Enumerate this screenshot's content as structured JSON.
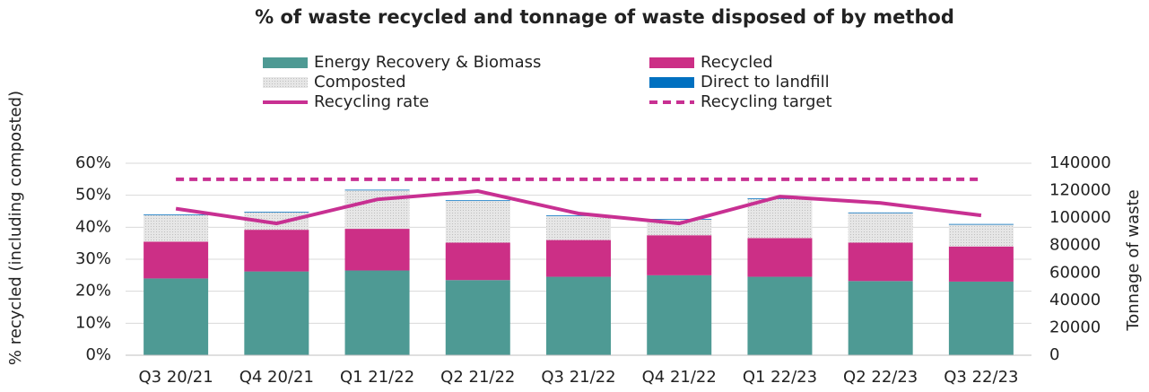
{
  "chart_data": {
    "type": "bar",
    "title": "% of waste recycled and tonnage of waste disposed of by method",
    "y_label": "% recycled (including composted)",
    "y2_label": "Tonnage of waste",
    "categories": [
      "Q3 20/21",
      "Q4 20/21",
      "Q1 21/22",
      "Q2 21/22",
      "Q3 21/22",
      "Q4 21/22",
      "Q1 22/23",
      "Q2 22/23",
      "Q3 22/23"
    ],
    "stacked": true,
    "series": [
      {
        "name": "Energy Recovery & Biomass",
        "color": "#4e9a94",
        "axis": "y2",
        "kind": "bar",
        "values": [
          56000,
          61100,
          61800,
          54800,
          57200,
          58300,
          57200,
          54100,
          53700
        ]
      },
      {
        "name": "Recycled",
        "color": "#cc2f86",
        "axis": "y2",
        "kind": "bar",
        "values": [
          26800,
          30400,
          30400,
          27300,
          26800,
          29200,
          28200,
          28000,
          25600
        ]
      },
      {
        "name": "Composted",
        "color": "#d9d9d9",
        "axis": "y2",
        "kind": "bar",
        "values": [
          19400,
          12600,
          28000,
          30400,
          17500,
          11400,
          28500,
          21500,
          15900
        ]
      },
      {
        "name": "Direct to landfill",
        "color": "#0070c0",
        "axis": "y2",
        "kind": "bar",
        "values": [
          500,
          500,
          500,
          500,
          500,
          500,
          500,
          500,
          500
        ]
      },
      {
        "name": "Recycling rate",
        "color": "#c83092",
        "axis": "y",
        "kind": "line",
        "values": [
          45.8,
          41.2,
          48.7,
          51.3,
          44.3,
          41.2,
          49.6,
          47.6,
          43.7
        ]
      },
      {
        "name": "Recycling target",
        "color": "#c83092",
        "axis": "y",
        "kind": "line",
        "dashed": true,
        "values": [
          55,
          55,
          55,
          55,
          55,
          55,
          55,
          55,
          55
        ]
      }
    ],
    "ylim": [
      0,
      60
    ],
    "yticks": [
      {
        "value": 0,
        "label": "0%"
      },
      {
        "value": 10,
        "label": "10%"
      },
      {
        "value": 20,
        "label": "20%"
      },
      {
        "value": 30,
        "label": "30%"
      },
      {
        "value": 40,
        "label": "40%"
      },
      {
        "value": 50,
        "label": "50%"
      },
      {
        "value": 60,
        "label": "60%"
      }
    ],
    "y2lim": [
      0,
      140000
    ],
    "y2ticks": [
      0,
      20000,
      40000,
      60000,
      80000,
      100000,
      120000,
      140000
    ],
    "grid": true,
    "legend": "top"
  }
}
